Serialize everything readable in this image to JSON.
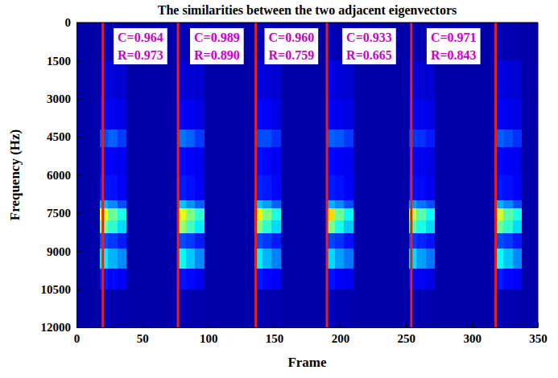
{
  "chart_data": {
    "type": "heatmap",
    "title": "The similarities between the two adjacent eigenvectors",
    "x_label": "Frame",
    "y_label": "Frequency (Hz)",
    "xlim": [
      0,
      350
    ],
    "xticks": [
      0,
      50,
      100,
      150,
      200,
      250,
      300,
      350
    ],
    "ylim": [
      0,
      12000
    ],
    "yticks": [
      0,
      1500,
      3000,
      4500,
      6000,
      7500,
      9000,
      10500,
      12000
    ],
    "color_range": [
      0,
      1
    ],
    "x_edges": [
      0,
      18,
      24,
      31,
      38,
      77,
      83,
      90,
      97,
      135,
      141,
      148,
      155,
      190,
      196,
      203,
      210,
      252,
      258,
      265,
      272,
      318,
      324,
      331,
      338,
      350
    ],
    "y_edges": [
      0,
      1500,
      3000,
      4200,
      4900,
      6000,
      7000,
      7300,
      7800,
      8300,
      8900,
      9700,
      10500,
      12000
    ],
    "cells": [
      [
        0.04,
        0.06,
        0.05,
        0.05,
        0.04,
        0.06,
        0.05,
        0.05,
        0.04,
        0.06,
        0.05,
        0.05,
        0.04,
        0.06,
        0.05,
        0.05,
        0.04,
        0.06,
        0.05,
        0.05,
        0.04,
        0.06,
        0.05,
        0.05,
        0.04
      ],
      [
        0.04,
        0.1,
        0.09,
        0.08,
        0.04,
        0.09,
        0.08,
        0.08,
        0.04,
        0.1,
        0.09,
        0.08,
        0.04,
        0.1,
        0.09,
        0.08,
        0.04,
        0.09,
        0.08,
        0.08,
        0.04,
        0.1,
        0.09,
        0.08,
        0.04
      ],
      [
        0.04,
        0.12,
        0.11,
        0.1,
        0.04,
        0.12,
        0.11,
        0.1,
        0.04,
        0.13,
        0.12,
        0.1,
        0.04,
        0.12,
        0.11,
        0.1,
        0.04,
        0.12,
        0.11,
        0.1,
        0.04,
        0.12,
        0.11,
        0.1,
        0.04
      ],
      [
        0.04,
        0.2,
        0.22,
        0.18,
        0.04,
        0.24,
        0.22,
        0.18,
        0.04,
        0.2,
        0.2,
        0.17,
        0.04,
        0.22,
        0.21,
        0.18,
        0.04,
        0.18,
        0.17,
        0.15,
        0.04,
        0.22,
        0.2,
        0.17,
        0.04
      ],
      [
        0.04,
        0.13,
        0.12,
        0.11,
        0.04,
        0.13,
        0.12,
        0.11,
        0.04,
        0.14,
        0.13,
        0.11,
        0.04,
        0.13,
        0.12,
        0.11,
        0.04,
        0.12,
        0.11,
        0.1,
        0.04,
        0.13,
        0.12,
        0.11,
        0.04
      ],
      [
        0.04,
        0.15,
        0.14,
        0.12,
        0.04,
        0.15,
        0.14,
        0.12,
        0.04,
        0.16,
        0.15,
        0.13,
        0.04,
        0.15,
        0.14,
        0.12,
        0.04,
        0.14,
        0.13,
        0.11,
        0.04,
        0.15,
        0.14,
        0.12,
        0.04
      ],
      [
        0.04,
        0.3,
        0.26,
        0.2,
        0.04,
        0.32,
        0.27,
        0.22,
        0.04,
        0.32,
        0.28,
        0.22,
        0.04,
        0.3,
        0.26,
        0.2,
        0.04,
        0.28,
        0.24,
        0.2,
        0.04,
        0.3,
        0.26,
        0.2,
        0.04
      ],
      [
        0.04,
        0.62,
        0.48,
        0.4,
        0.04,
        0.6,
        0.5,
        0.42,
        0.04,
        0.64,
        0.5,
        0.4,
        0.04,
        0.66,
        0.48,
        0.38,
        0.04,
        0.56,
        0.46,
        0.38,
        0.04,
        0.58,
        0.46,
        0.4,
        0.04
      ],
      [
        0.04,
        0.5,
        0.42,
        0.34,
        0.04,
        0.52,
        0.44,
        0.36,
        0.04,
        0.5,
        0.42,
        0.34,
        0.04,
        0.5,
        0.4,
        0.32,
        0.04,
        0.46,
        0.4,
        0.34,
        0.04,
        0.48,
        0.42,
        0.34,
        0.04
      ],
      [
        0.04,
        0.2,
        0.18,
        0.15,
        0.04,
        0.2,
        0.18,
        0.15,
        0.04,
        0.2,
        0.18,
        0.15,
        0.04,
        0.19,
        0.17,
        0.14,
        0.04,
        0.18,
        0.16,
        0.14,
        0.04,
        0.2,
        0.18,
        0.15,
        0.04
      ],
      [
        0.04,
        0.36,
        0.3,
        0.26,
        0.04,
        0.38,
        0.32,
        0.26,
        0.04,
        0.36,
        0.3,
        0.25,
        0.04,
        0.34,
        0.28,
        0.24,
        0.04,
        0.34,
        0.28,
        0.24,
        0.04,
        0.38,
        0.32,
        0.26,
        0.04
      ],
      [
        0.04,
        0.15,
        0.13,
        0.12,
        0.04,
        0.14,
        0.13,
        0.11,
        0.04,
        0.15,
        0.13,
        0.12,
        0.04,
        0.14,
        0.12,
        0.11,
        0.04,
        0.13,
        0.12,
        0.1,
        0.04,
        0.15,
        0.13,
        0.12,
        0.04
      ],
      [
        0.04,
        0.06,
        0.05,
        0.05,
        0.04,
        0.06,
        0.05,
        0.05,
        0.04,
        0.06,
        0.05,
        0.05,
        0.04,
        0.06,
        0.05,
        0.05,
        0.04,
        0.06,
        0.05,
        0.05,
        0.04,
        0.06,
        0.05,
        0.05,
        0.04
      ]
    ],
    "boundaries": [
      20,
      77,
      136,
      190,
      254,
      318
    ],
    "annotations": [
      {
        "lines": [
          "C=0.964",
          "R=0.973"
        ]
      },
      {
        "lines": [
          "C=0.989",
          "R=0.890"
        ]
      },
      {
        "lines": [
          "C=0.960",
          "R=0.759"
        ]
      },
      {
        "lines": [
          "C=0.933",
          "R=0.665"
        ]
      },
      {
        "lines": [
          "C=0.971",
          "R=0.843"
        ]
      }
    ]
  }
}
